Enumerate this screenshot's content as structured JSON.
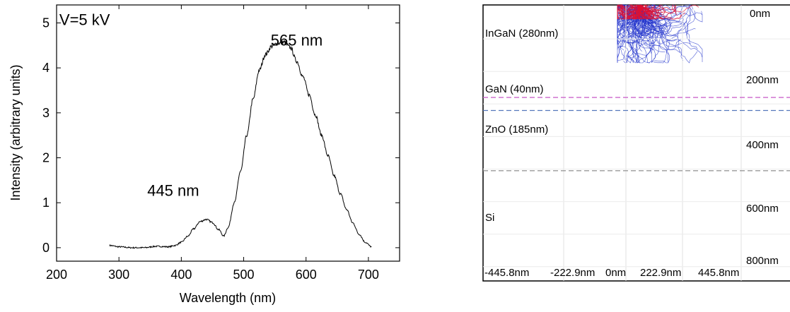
{
  "chart_data": [
    {
      "type": "line",
      "title": "",
      "xlabel": "Wavelength (nm)",
      "ylabel": "Intensity (arbitrary units)",
      "xlim": [
        200,
        750
      ],
      "ylim": [
        -0.3,
        5.4
      ],
      "xticks": [
        200,
        300,
        400,
        500,
        600,
        700
      ],
      "yticks": [
        0,
        1,
        2,
        3,
        4,
        5
      ],
      "grid": false,
      "legend": "none",
      "series": [
        {
          "color": "#000000",
          "x": [
            285,
            300,
            320,
            340,
            360,
            380,
            390,
            400,
            410,
            420,
            430,
            440,
            450,
            460,
            468,
            475,
            485,
            495,
            505,
            515,
            525,
            535,
            545,
            555,
            565,
            575,
            585,
            595,
            605,
            615,
            625,
            635,
            645,
            655,
            665,
            675,
            685,
            695,
            705
          ],
          "y": [
            0.05,
            0.02,
            0.0,
            0.0,
            0.03,
            0.02,
            0.05,
            0.12,
            0.25,
            0.42,
            0.58,
            0.63,
            0.56,
            0.4,
            0.26,
            0.45,
            1.0,
            1.7,
            2.5,
            3.3,
            3.95,
            4.3,
            4.48,
            4.55,
            4.57,
            4.45,
            4.15,
            3.8,
            3.4,
            2.95,
            2.5,
            2.05,
            1.6,
            1.2,
            0.85,
            0.55,
            0.3,
            0.12,
            0.02
          ]
        }
      ],
      "annotations": [
        {
          "text": "V=5 kV",
          "x": 245,
          "y": 4.95
        },
        {
          "text": "565 nm",
          "x": 585,
          "y": 4.5
        },
        {
          "text": "445 nm",
          "x": 387,
          "y": 1.15
        }
      ]
    },
    {
      "type": "scatter",
      "title": "",
      "layers": [
        {
          "label": "InGaN (280nm)"
        },
        {
          "label": "GaN (40nm)"
        },
        {
          "label": "ZnO (185nm)"
        },
        {
          "label": "Si"
        }
      ],
      "depth_ticks": [
        "0nm",
        "200nm",
        "400nm",
        "600nm",
        "800nm"
      ],
      "x_ticks": [
        "-445.8nm",
        "-222.9nm",
        "0nm",
        "222.9nm",
        "445.8nm"
      ],
      "boundaries_nm": [
        280,
        320,
        505
      ],
      "boundary_colors": [
        "#cc66cc",
        "#5577bb",
        "#999999"
      ],
      "trajectory_colors": {
        "primary": "#2233cc",
        "backscatter": "#dd1133"
      }
    }
  ]
}
